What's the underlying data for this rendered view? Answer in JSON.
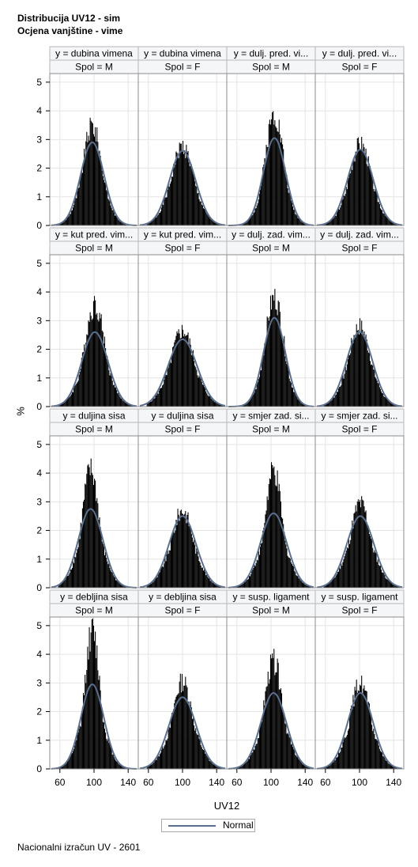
{
  "titles": [
    "Distribucija UV12 - sim",
    "Ocjena vanjštine - vime"
  ],
  "footnote": "Nacionalni izračun UV - 2601",
  "legend": {
    "label": "Normal",
    "color": "#5a6f8f"
  },
  "colors": {
    "bars": "#000000",
    "curve": "#5a6f8f",
    "header_bg": "#f5f6f8",
    "frame": "#8c8c8c",
    "grid": "#e4e4e4"
  },
  "chart_data": {
    "type": "bar",
    "subtype": "histogram-with-normal-curve-panel-grid",
    "xlabel": "UV12",
    "ylabel": "%",
    "xlim": [
      50,
      150
    ],
    "ylim": [
      0,
      5.3
    ],
    "xticks": [
      60,
      100,
      140
    ],
    "yticks": [
      0,
      1,
      2,
      3,
      4,
      5
    ],
    "grid": true,
    "legend_position": "bottom",
    "rows": [
      {
        "traits": [
          "y = dubina vimena",
          "y = dubina vimena",
          "y = dulj. pred. vi...",
          "y = dulj. pred. vi..."
        ]
      },
      {
        "traits": [
          "y = kut pred. vim...",
          "y = kut pred. vim...",
          "y = dulj. zad. vim...",
          "y = dulj. zad. vim..."
        ]
      },
      {
        "traits": [
          "y = duljina sisa",
          "y = duljina sisa",
          "y = smjer zad. si...",
          "y = smjer zad. si..."
        ]
      },
      {
        "traits": [
          "y = debljina sisa",
          "y = debljina sisa",
          "y = susp. ligament",
          "y = susp. ligament"
        ]
      }
    ],
    "sexes": [
      "Spol = M",
      "Spol = F",
      "Spol = M",
      "Spol = F"
    ],
    "panels": [
      {
        "trait": "y = dubina vimena",
        "sex": "Spol = M",
        "normal_mean": 98,
        "normal_peak": 2.9,
        "hist_peak": 3.5,
        "hist_width": 11
      },
      {
        "trait": "y = dubina vimena",
        "sex": "Spol = F",
        "normal_mean": 100,
        "normal_peak": 2.6,
        "hist_peak": 2.75,
        "hist_width": 13
      },
      {
        "trait": "y = dulj. pred. vi...",
        "sex": "Spol = M",
        "normal_mean": 104,
        "normal_peak": 3.05,
        "hist_peak": 3.9,
        "hist_width": 11
      },
      {
        "trait": "y = dulj. pred. vi...",
        "sex": "Spol = F",
        "normal_mean": 101,
        "normal_peak": 2.65,
        "hist_peak": 2.85,
        "hist_width": 13
      },
      {
        "trait": "y = kut pred. vim...",
        "sex": "Spol = M",
        "normal_mean": 101,
        "normal_peak": 2.6,
        "hist_peak": 3.55,
        "hist_width": 12
      },
      {
        "trait": "y = kut pred. vim...",
        "sex": "Spol = F",
        "normal_mean": 100,
        "normal_peak": 2.35,
        "hist_peak": 2.65,
        "hist_width": 14
      },
      {
        "trait": "y = dulj. zad. vim...",
        "sex": "Spol = M",
        "normal_mean": 104,
        "normal_peak": 3.1,
        "hist_peak": 3.8,
        "hist_width": 11
      },
      {
        "trait": "y = dulj. zad. vim...",
        "sex": "Spol = F",
        "normal_mean": 100,
        "normal_peak": 2.6,
        "hist_peak": 2.8,
        "hist_width": 13
      },
      {
        "trait": "y = duljina sisa",
        "sex": "Spol = M",
        "normal_mean": 96,
        "normal_peak": 2.75,
        "hist_peak": 4.1,
        "hist_width": 10
      },
      {
        "trait": "y = duljina sisa",
        "sex": "Spol = F",
        "normal_mean": 100,
        "normal_peak": 2.5,
        "hist_peak": 2.7,
        "hist_width": 13
      },
      {
        "trait": "y = smjer zad. si...",
        "sex": "Spol = M",
        "normal_mean": 103,
        "normal_peak": 2.6,
        "hist_peak": 4.05,
        "hist_width": 10
      },
      {
        "trait": "y = smjer zad. si...",
        "sex": "Spol = F",
        "normal_mean": 101,
        "normal_peak": 2.5,
        "hist_peak": 2.95,
        "hist_width": 12
      },
      {
        "trait": "y = debljina sisa",
        "sex": "Spol = M",
        "normal_mean": 98,
        "normal_peak": 2.95,
        "hist_peak": 4.8,
        "hist_width": 9
      },
      {
        "trait": "y = debljina sisa",
        "sex": "Spol = F",
        "normal_mean": 100,
        "normal_peak": 2.5,
        "hist_peak": 3.05,
        "hist_width": 12
      },
      {
        "trait": "y = susp. ligament",
        "sex": "Spol = M",
        "normal_mean": 103,
        "normal_peak": 2.65,
        "hist_peak": 3.75,
        "hist_width": 11
      },
      {
        "trait": "y = susp. ligament",
        "sex": "Spol = F",
        "normal_mean": 101,
        "normal_peak": 2.65,
        "hist_peak": 3.0,
        "hist_width": 12
      }
    ]
  }
}
